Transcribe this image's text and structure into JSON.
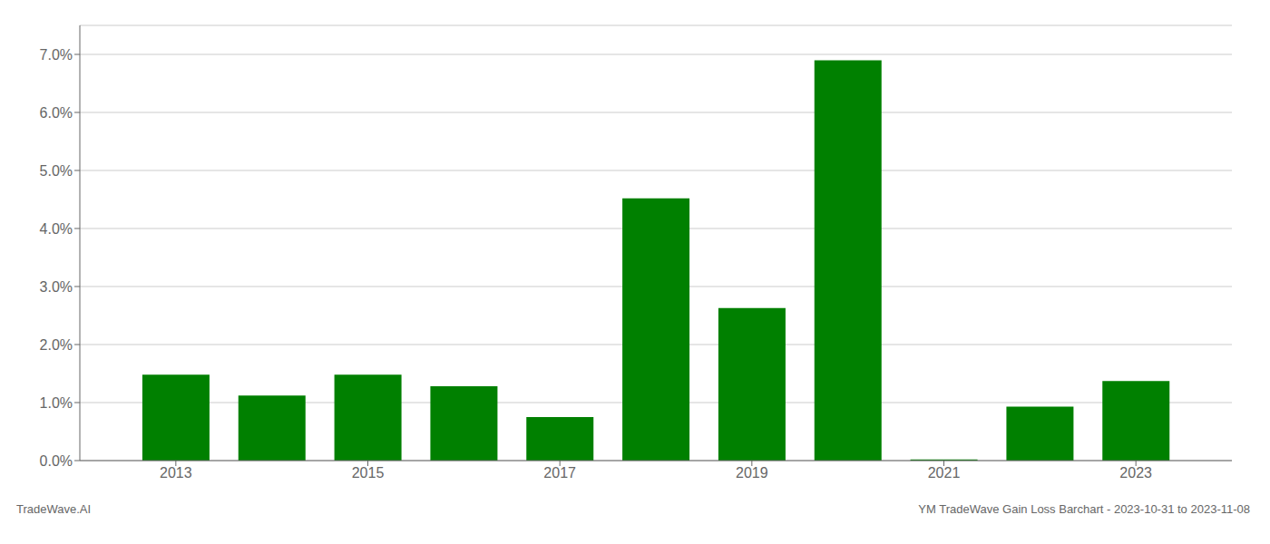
{
  "chart_data": {
    "type": "bar",
    "x": [
      2013,
      2014,
      2015,
      2016,
      2017,
      2018,
      2019,
      2020,
      2021,
      2022,
      2023
    ],
    "values": [
      0.0148,
      0.0112,
      0.0148,
      0.0128,
      0.0075,
      0.0452,
      0.0263,
      0.069,
      0.0002,
      0.0093,
      0.0137
    ],
    "color": "#008000",
    "xlim": [
      2012.0,
      2024.0
    ],
    "xticks": [
      2013,
      2015,
      2017,
      2019,
      2021,
      2023
    ],
    "ylim": [
      0.0,
      0.075
    ],
    "yticks": [
      {
        "value": 0.0,
        "label": "0.0%"
      },
      {
        "value": 0.01,
        "label": "1.0%"
      },
      {
        "value": 0.02,
        "label": "2.0%"
      },
      {
        "value": 0.03,
        "label": "3.0%"
      },
      {
        "value": 0.04,
        "label": "4.0%"
      },
      {
        "value": 0.05,
        "label": "5.0%"
      },
      {
        "value": 0.06,
        "label": "6.0%"
      },
      {
        "value": 0.07,
        "label": "7.0%"
      }
    ],
    "grid": true,
    "annotations": [
      "TradeWave.AI",
      "YM TradeWave Gain Loss Barchart - 2023-10-31 to 2023-11-08"
    ]
  }
}
